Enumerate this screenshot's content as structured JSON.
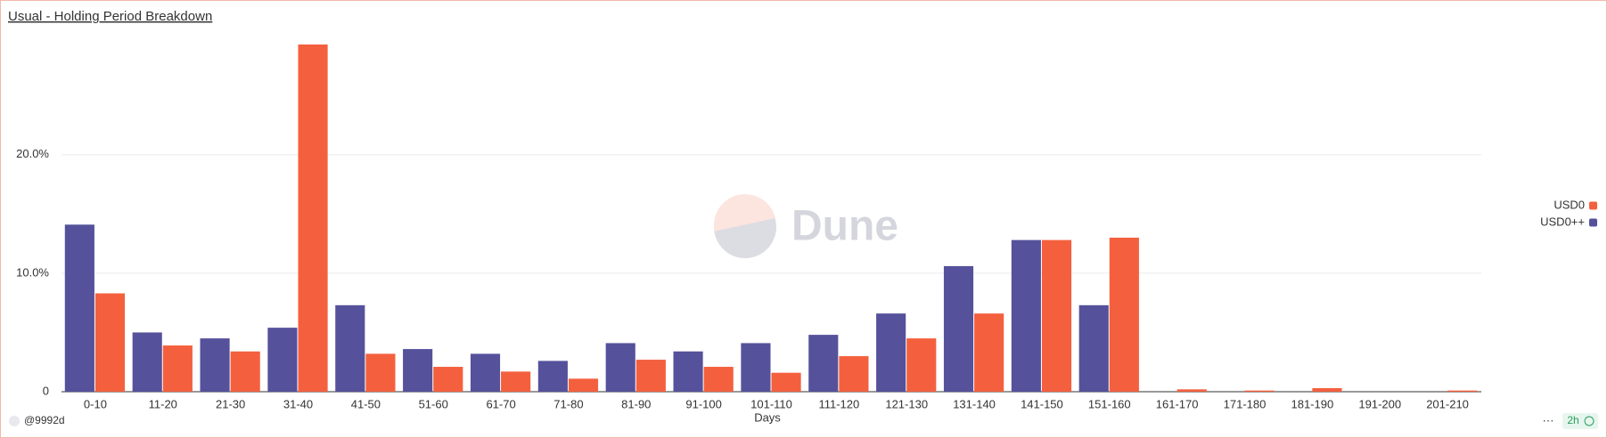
{
  "chart_data": {
    "type": "bar",
    "title": "Usual - Holding Period Breakdown",
    "x_label": "Days",
    "categories": [
      "0-10",
      "11-20",
      "21-30",
      "31-40",
      "41-50",
      "51-60",
      "61-70",
      "71-80",
      "81-90",
      "91-100",
      "101-110",
      "111-120",
      "121-130",
      "131-140",
      "141-150",
      "151-160",
      "161-170",
      "171-180",
      "181-190",
      "191-200",
      "201-210"
    ],
    "series": [
      {
        "name": "USD0",
        "color": "#f4603e",
        "values": [
          8.3,
          3.9,
          3.4,
          29.3,
          3.2,
          2.1,
          1.7,
          1.1,
          2.7,
          2.1,
          1.6,
          3.0,
          4.5,
          6.6,
          12.8,
          13.0,
          0.2,
          0.1,
          0.3,
          0,
          0.1
        ]
      },
      {
        "name": "USD0++",
        "color": "#55519b",
        "values": [
          14.1,
          5.0,
          4.5,
          5.4,
          7.3,
          3.6,
          3.2,
          2.6,
          4.1,
          3.4,
          4.1,
          4.8,
          6.6,
          10.6,
          12.8,
          7.3,
          0,
          0,
          0,
          0,
          0
        ]
      }
    ],
    "ylim": [
      0,
      29.6
    ],
    "yticks": [
      0,
      {
        "value": 10,
        "label": "10.0%"
      },
      {
        "value": 20,
        "label": "20.0%"
      }
    ],
    "grid": true,
    "legend": "right"
  },
  "watermark": "Dune",
  "footer": {
    "user": "@9992d",
    "menu": "···",
    "refresh": "2h"
  }
}
